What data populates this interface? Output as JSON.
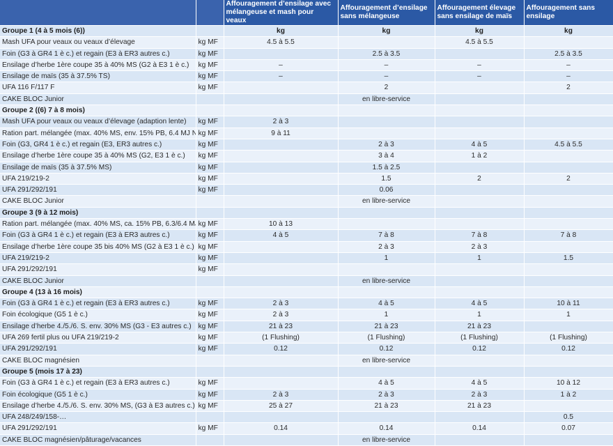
{
  "header": {
    "cols": [
      "",
      "",
      "Affouragement d’ensilage avec mélangeuse et mash pour veaux",
      "Affouragement d’ensilage sans mélangeuse",
      "Affouragement élevage sans ensilage de maïs",
      "Affouragement sans ensilage"
    ]
  },
  "rows": [
    {
      "cells": [
        "Groupe 1 (4 à 5 mois (6))",
        "",
        "kg",
        "kg",
        "kg",
        "kg"
      ]
    },
    {
      "cells": [
        "Mash UFA pour veaux ou veaux d’élevage",
        "kg MF",
        "4.5 à 5.5",
        "",
        "4.5 à 5.5",
        ""
      ]
    },
    {
      "cells": [
        "Foin (G3 à GR4 1 è c.) et regain (E3 à ER3 autres c.)",
        "kg MF",
        "",
        "2.5 à 3.5",
        "",
        "2.5 à 3.5"
      ]
    },
    {
      "cells": [
        "Ensilage d’herbe 1ère coupe 35 à 40% MS (G2 à E3 1 è c.)",
        "kg MF",
        "–",
        "–",
        "–",
        "–"
      ]
    },
    {
      "cells": [
        "Ensilage de maïs (35 à 37.5% TS)",
        "kg MF",
        "–",
        "–",
        "–",
        "–"
      ]
    },
    {
      "cells": [
        "UFA 116 F/117 F",
        "kg MF",
        "",
        "2",
        "",
        "2"
      ]
    },
    {
      "cells": [
        "CAKE BLOC Junior",
        "",
        "",
        "en libre-service",
        "",
        ""
      ]
    },
    {
      "cells": [
        "Groupe 2 ((6) 7 à 8 mois)",
        "",
        "",
        "",
        "",
        ""
      ]
    },
    {
      "cells": [
        "Mash UFA pour veaux ou veaux d’élevage (adaption lente)",
        "kg MF",
        "2 à 3",
        "",
        "",
        ""
      ]
    },
    {
      "cells": [
        "Ration part. mélangée (max. 40% MS, env. 15% PB, 6.4 MJ NEL)",
        "kg MF",
        "9 à 11",
        "",
        "",
        ""
      ]
    },
    {
      "cells": [
        "Foin (G3, GR4 1 è c.) et regain (E3, ER3 autres c.)",
        "kg MF",
        "",
        "2 à 3",
        "4 à 5",
        "4.5 à 5.5"
      ]
    },
    {
      "cells": [
        "Ensilage d’herbe 1ère coupe 35 à 40% MS (G2, E3 1 è c.)",
        "kg MF",
        "",
        "3 à 4",
        "1 à 2",
        ""
      ]
    },
    {
      "cells": [
        "Ensilage de maïs (35 à 37.5% MS)",
        "kg MF",
        "",
        "1.5 à 2.5",
        "",
        ""
      ]
    },
    {
      "cells": [
        "UFA 219/219-2",
        "kg MF",
        "",
        "1.5",
        "2",
        "2"
      ]
    },
    {
      "cells": [
        "UFA 291/292/191",
        "kg MF",
        "",
        "0.06",
        "",
        ""
      ]
    },
    {
      "cells": [
        "CAKE BLOC Junior",
        "",
        "",
        "en libre-service",
        "",
        ""
      ]
    },
    {
      "cells": [
        "Groupe 3 (9 à 12 mois)",
        "",
        "",
        "",
        "",
        ""
      ]
    },
    {
      "cells": [
        "Ration part. mélangée (max. 40% MS, ca. 15% PB,  6.3/6.4 MJ Nel)",
        "kg MF",
        "10 à 13",
        "",
        "",
        ""
      ]
    },
    {
      "cells": [
        "Foin (G3 à GR4 1 è c.) et regain (E3 à ER3 autres c.)",
        "kg MF",
        "4 à 5",
        "7 à 8",
        "7 à 8",
        "7 à 8"
      ]
    },
    {
      "cells": [
        "Ensilage d’herbe 1ère coupe 35 bis 40% MS (G2 à E3 1 è c.)",
        "kg MF",
        "",
        "2 à 3",
        "2 à 3",
        ""
      ]
    },
    {
      "cells": [
        "UFA 219/219-2",
        "kg MF",
        "",
        "1",
        "1",
        "1.5"
      ]
    },
    {
      "cells": [
        "UFA 291/292/191",
        "kg MF",
        "",
        "",
        "",
        ""
      ]
    },
    {
      "cells": [
        "CAKE BLOC Junior",
        "",
        "",
        "en libre-service",
        "",
        ""
      ]
    },
    {
      "cells": [
        "Groupe 4 (13 à 16 mois)",
        "",
        "",
        "",
        "",
        ""
      ]
    },
    {
      "cells": [
        "Foin (G3 à GR4 1 è c.) et regain (E3 à ER3 autres c.)",
        "kg MF",
        "2 à 3",
        "4 à 5",
        "4 à 5",
        "10 à 11"
      ]
    },
    {
      "cells": [
        "Foin écologique (G5 1 è c.)",
        "kg MF",
        "2 à 3",
        "1",
        "1",
        "1"
      ]
    },
    {
      "cells": [
        "Ensilage d’herbe 4./5./6. S. env. 30% MS (G3 - E3 autres c.)",
        "kg MF",
        "21 à 23",
        "21 à 23",
        "21 à 23",
        ""
      ]
    },
    {
      "cells": [
        "UFA 269 fertil plus ou UFA 219/219-2",
        "kg MF",
        "(1 Flushing)",
        "(1 Flushing)",
        "(1 Flushing)",
        "(1 Flushing)"
      ]
    },
    {
      "cells": [
        "UFA 291/292/191",
        "kg MF",
        "0.12",
        "0.12",
        "0.12",
        "0.12"
      ]
    },
    {
      "cells": [
        "CAKE BLOC magnésien",
        "",
        "",
        "en libre-service",
        "",
        ""
      ]
    },
    {
      "cells": [
        "Groupe 5 (mois 17 à 23)",
        "",
        "",
        "",
        "",
        ""
      ]
    },
    {
      "cells": [
        "Foin (G3 à GR4 1 è c.) et regain (E3 à ER3 autres c.)",
        "kg MF",
        "",
        "4 à 5",
        "4 à 5",
        "10 à 12"
      ]
    },
    {
      "cells": [
        "Foin écologique (G5 1 è c.)",
        "kg MF",
        "2 à 3",
        "2 à 3",
        "2 à 3",
        "1 à 2"
      ]
    },
    {
      "cells": [
        "Ensilage d’herbe 4./5./6. S. env. 30% MS, (G3 à E3 autres c.)",
        "kg MF",
        "25 à 27",
        "21 à 23",
        "21 à 23",
        ""
      ]
    },
    {
      "cells": [
        "UFA 248/249/158-…",
        "",
        "",
        "",
        "",
        "0.5"
      ]
    },
    {
      "cells": [
        "UFA 291/292/191",
        "kg MF",
        "0.14",
        "0.14",
        "0.14",
        "0.07"
      ]
    },
    {
      "cells": [
        "CAKE BLOC magnésien/pâturage/vacances",
        "",
        "",
        "en libre-service",
        "",
        ""
      ]
    }
  ],
  "colors": {
    "header_bg": "#2b59a5",
    "row_odd": "#d9e6f5",
    "row_even": "#eaf1fa"
  }
}
